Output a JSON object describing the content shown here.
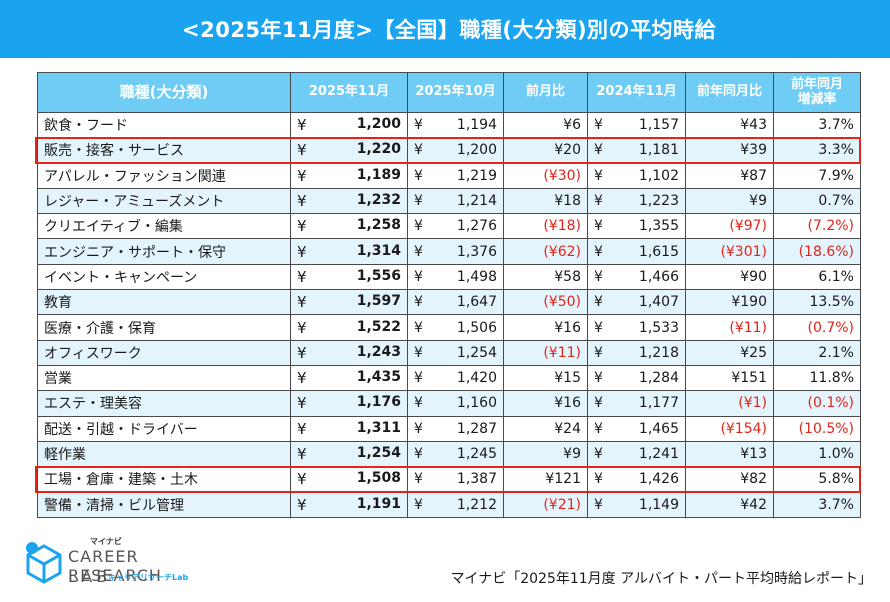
{
  "title": "<2025年11月度>【全国】職種(大分類)別の平均時給",
  "colors": {
    "header_bg": "#1aa3ee",
    "table_header_bg": "#6fcdf5",
    "stripe": "#e3f4fd",
    "negative": "#e0251b",
    "highlight_border": "#e0251b"
  },
  "table": {
    "headers": {
      "category": "職種(大分類)",
      "nov2025": "2025年11月",
      "oct2025": "2025年10月",
      "mom": "前月比",
      "nov2024": "2024年11月",
      "yoy": "前年同月比",
      "yoy_rate_line1": "前年同月",
      "yoy_rate_line2": "増減率"
    },
    "yen": "¥",
    "rows": [
      {
        "category": "飲食・フード",
        "nov2025": "1,200",
        "oct2025": "1,194",
        "mom": "¥6",
        "nov2024": "1,157",
        "yoy": "¥43",
        "yoy_rate": "3.7%"
      },
      {
        "category": "販売・接客・サービス",
        "nov2025": "1,220",
        "oct2025": "1,200",
        "mom": "¥20",
        "nov2024": "1,181",
        "yoy": "¥39",
        "yoy_rate": "3.3%"
      },
      {
        "category": "アパレル・ファッション関連",
        "nov2025": "1,189",
        "oct2025": "1,219",
        "mom": "(¥30)",
        "nov2024": "1,102",
        "yoy": "¥87",
        "yoy_rate": "7.9%"
      },
      {
        "category": "レジャー・アミューズメント",
        "nov2025": "1,232",
        "oct2025": "1,214",
        "mom": "¥18",
        "nov2024": "1,223",
        "yoy": "¥9",
        "yoy_rate": "0.7%"
      },
      {
        "category": "クリエイティブ・編集",
        "nov2025": "1,258",
        "oct2025": "1,276",
        "mom": "(¥18)",
        "nov2024": "1,355",
        "yoy": "(¥97)",
        "yoy_rate": "(7.2%)"
      },
      {
        "category": "エンジニア・サポート・保守",
        "nov2025": "1,314",
        "oct2025": "1,376",
        "mom": "(¥62)",
        "nov2024": "1,615",
        "yoy": "(¥301)",
        "yoy_rate": "(18.6%)"
      },
      {
        "category": "イベント・キャンペーン",
        "nov2025": "1,556",
        "oct2025": "1,498",
        "mom": "¥58",
        "nov2024": "1,466",
        "yoy": "¥90",
        "yoy_rate": "6.1%"
      },
      {
        "category": "教育",
        "nov2025": "1,597",
        "oct2025": "1,647",
        "mom": "(¥50)",
        "nov2024": "1,407",
        "yoy": "¥190",
        "yoy_rate": "13.5%"
      },
      {
        "category": "医療・介護・保育",
        "nov2025": "1,522",
        "oct2025": "1,506",
        "mom": "¥16",
        "nov2024": "1,533",
        "yoy": "(¥11)",
        "yoy_rate": "(0.7%)"
      },
      {
        "category": "オフィスワーク",
        "nov2025": "1,243",
        "oct2025": "1,254",
        "mom": "(¥11)",
        "nov2024": "1,218",
        "yoy": "¥25",
        "yoy_rate": "2.1%"
      },
      {
        "category": "営業",
        "nov2025": "1,435",
        "oct2025": "1,420",
        "mom": "¥15",
        "nov2024": "1,284",
        "yoy": "¥151",
        "yoy_rate": "11.8%"
      },
      {
        "category": "エステ・理美容",
        "nov2025": "1,176",
        "oct2025": "1,160",
        "mom": "¥16",
        "nov2024": "1,177",
        "yoy": "(¥1)",
        "yoy_rate": "(0.1%)"
      },
      {
        "category": "配送・引越・ドライバー",
        "nov2025": "1,311",
        "oct2025": "1,287",
        "mom": "¥24",
        "nov2024": "1,465",
        "yoy": "(¥154)",
        "yoy_rate": "(10.5%)"
      },
      {
        "category": "軽作業",
        "nov2025": "1,254",
        "oct2025": "1,245",
        "mom": "¥9",
        "nov2024": "1,241",
        "yoy": "¥13",
        "yoy_rate": "1.0%"
      },
      {
        "category": "工場・倉庫・建築・土木",
        "nov2025": "1,508",
        "oct2025": "1,387",
        "mom": "¥121",
        "nov2024": "1,426",
        "yoy": "¥82",
        "yoy_rate": "5.8%"
      },
      {
        "category": "警備・清掃・ビル管理",
        "nov2025": "1,191",
        "oct2025": "1,212",
        "mom": "(¥21)",
        "nov2024": "1,149",
        "yoy": "¥42",
        "yoy_rate": "3.7%"
      }
    ],
    "highlighted_rows": [
      1,
      14
    ]
  },
  "logo": {
    "small": "マイナビ",
    "line1": "CAREER RESEARCH",
    "line2": "LAB",
    "sub": "キャリアリサーチLab",
    "icon": "cube-logo-icon"
  },
  "source": "マイナビ「2025年11月度 アルバイト・パート平均時給レポート」"
}
